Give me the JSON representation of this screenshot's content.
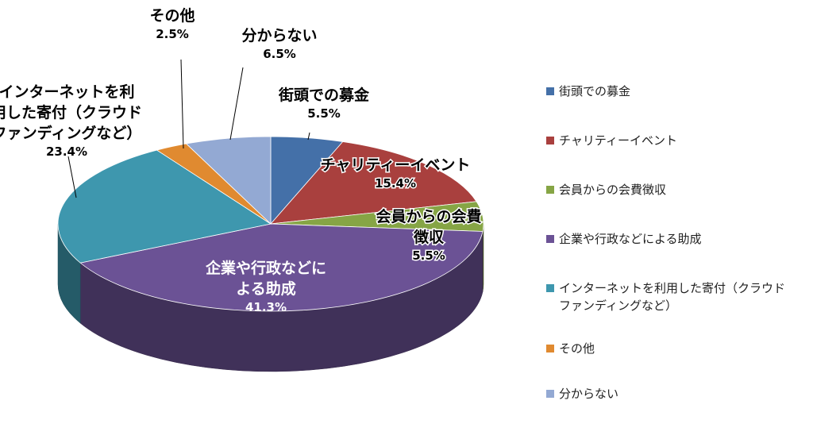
{
  "chart_data": {
    "type": "pie",
    "style": "3d",
    "slices": [
      {
        "name": "街頭での募金",
        "value": 5.5,
        "label": "5.5%",
        "color": "#4470A8"
      },
      {
        "name": "チャリティーイベント",
        "value": 15.4,
        "label": "15.4%",
        "color": "#A9403E"
      },
      {
        "name": "会員からの会費徴収",
        "value": 5.5,
        "label": "5.5%",
        "color": "#86A545"
      },
      {
        "name": "企業や行政などによる助成",
        "value": 41.3,
        "label": "41.3%",
        "color": "#6B5295"
      },
      {
        "name": "インターネットを利用した寄付（クラウドファンディングなど）",
        "value": 23.4,
        "label": "23.4%",
        "color": "#3E97AE"
      },
      {
        "name": "その他",
        "value": 2.5,
        "label": "2.5%",
        "color": "#E08A30"
      },
      {
        "name": "分からない",
        "value": 6.5,
        "label": "6.5%",
        "color": "#93A9D3"
      }
    ],
    "slice_labels": [
      "街頭での募金",
      "チャリティーイベント",
      "会員からの会費\n徴収",
      "企業や行政などに\nよる助成",
      "インターネットを利\n用した寄付（クラウド\nファンディングなど）",
      "その他",
      "分からない"
    ],
    "legend_labels": [
      "街頭での募金",
      "チャリティーイベント",
      "会員からの会費徴収",
      "企業や行政などによる助成",
      "インターネットを利用した寄付（クラウド\nファンディングなど）",
      "その他",
      "分からない"
    ],
    "legend_position": "right"
  }
}
